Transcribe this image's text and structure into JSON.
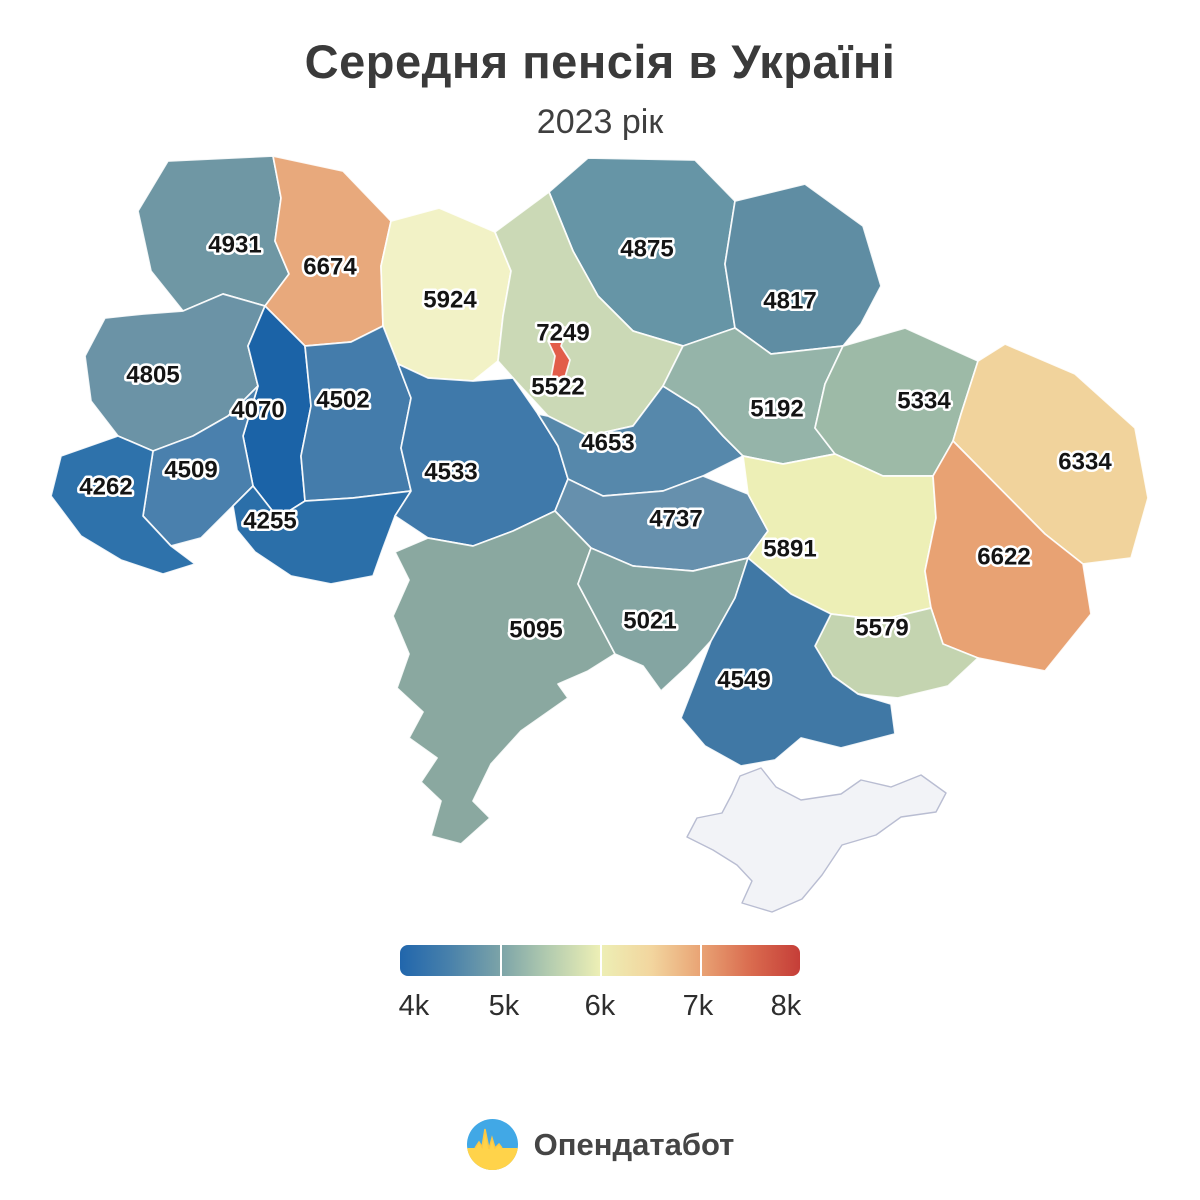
{
  "header": {
    "title": "Середня пенсія в Україні",
    "subtitle": "2023 рік"
  },
  "legend": {
    "ticks": [
      "4k",
      "5k",
      "6k",
      "7k",
      "8k"
    ],
    "gradient_colors": [
      "#2166ac",
      "#7ba3a8",
      "#edefb5",
      "#e9a475",
      "#c53e38"
    ]
  },
  "footer": {
    "brand": "Опендатабот"
  },
  "chart_data": {
    "type": "choropleth",
    "title": "Середня пенсія в Україні",
    "subtitle": "2023 рік",
    "scale": {
      "min": 4000,
      "max": 8000,
      "tick_labels": [
        "4k",
        "5k",
        "6k",
        "7k",
        "8k"
      ],
      "palette": "blue-yellow-red diverging"
    },
    "regions": [
      {
        "id": "volyn",
        "value": 4931,
        "color": "#6f97a4"
      },
      {
        "id": "rivne",
        "value": 6674,
        "color": "#e8a97c"
      },
      {
        "id": "zhytomyr",
        "value": 5924,
        "color": "#f2f2c6"
      },
      {
        "id": "chernihiv",
        "value": 4875,
        "color": "#6695a6"
      },
      {
        "id": "sumy",
        "value": 4817,
        "color": "#5f8da3"
      },
      {
        "id": "kyiv-oblast",
        "value": 5522,
        "color": "#cbd9b6"
      },
      {
        "id": "kyiv-city",
        "value": 7249,
        "color": "#e25c49"
      },
      {
        "id": "lviv",
        "value": 4805,
        "color": "#6b93a6"
      },
      {
        "id": "ternopil",
        "value": 4070,
        "color": "#1b63a7"
      },
      {
        "id": "khmelnytskyi",
        "value": 4502,
        "color": "#447cab"
      },
      {
        "id": "ivano-frankivsk",
        "value": 4509,
        "color": "#4a80ad"
      },
      {
        "id": "zakarpattia",
        "value": 4262,
        "color": "#2e72ab"
      },
      {
        "id": "chernivtsi",
        "value": 4255,
        "color": "#2b6fa9"
      },
      {
        "id": "vinnytsia",
        "value": 4533,
        "color": "#3f79aa"
      },
      {
        "id": "cherkasy",
        "value": 4653,
        "color": "#5688ab"
      },
      {
        "id": "poltava",
        "value": 5192,
        "color": "#95b4a9"
      },
      {
        "id": "kharkiv",
        "value": 5334,
        "color": "#9dbaa7"
      },
      {
        "id": "luhansk",
        "value": 6334,
        "color": "#f1d39c"
      },
      {
        "id": "kirovohrad",
        "value": 4737,
        "color": "#6690ad"
      },
      {
        "id": "dnipro",
        "value": 5891,
        "color": "#edefb6"
      },
      {
        "id": "donetsk",
        "value": 6622,
        "color": "#e8a273"
      },
      {
        "id": "odesa",
        "value": 5095,
        "color": "#8aa8a0"
      },
      {
        "id": "mykolaiv",
        "value": 5021,
        "color": "#84a5a2"
      },
      {
        "id": "zaporizhzhia",
        "value": 5579,
        "color": "#c4d4b0"
      },
      {
        "id": "kherson",
        "value": 4549,
        "color": "#4078a5"
      },
      {
        "id": "crimea",
        "value": null,
        "color": "#f2f3f7",
        "no_data": true
      }
    ]
  }
}
